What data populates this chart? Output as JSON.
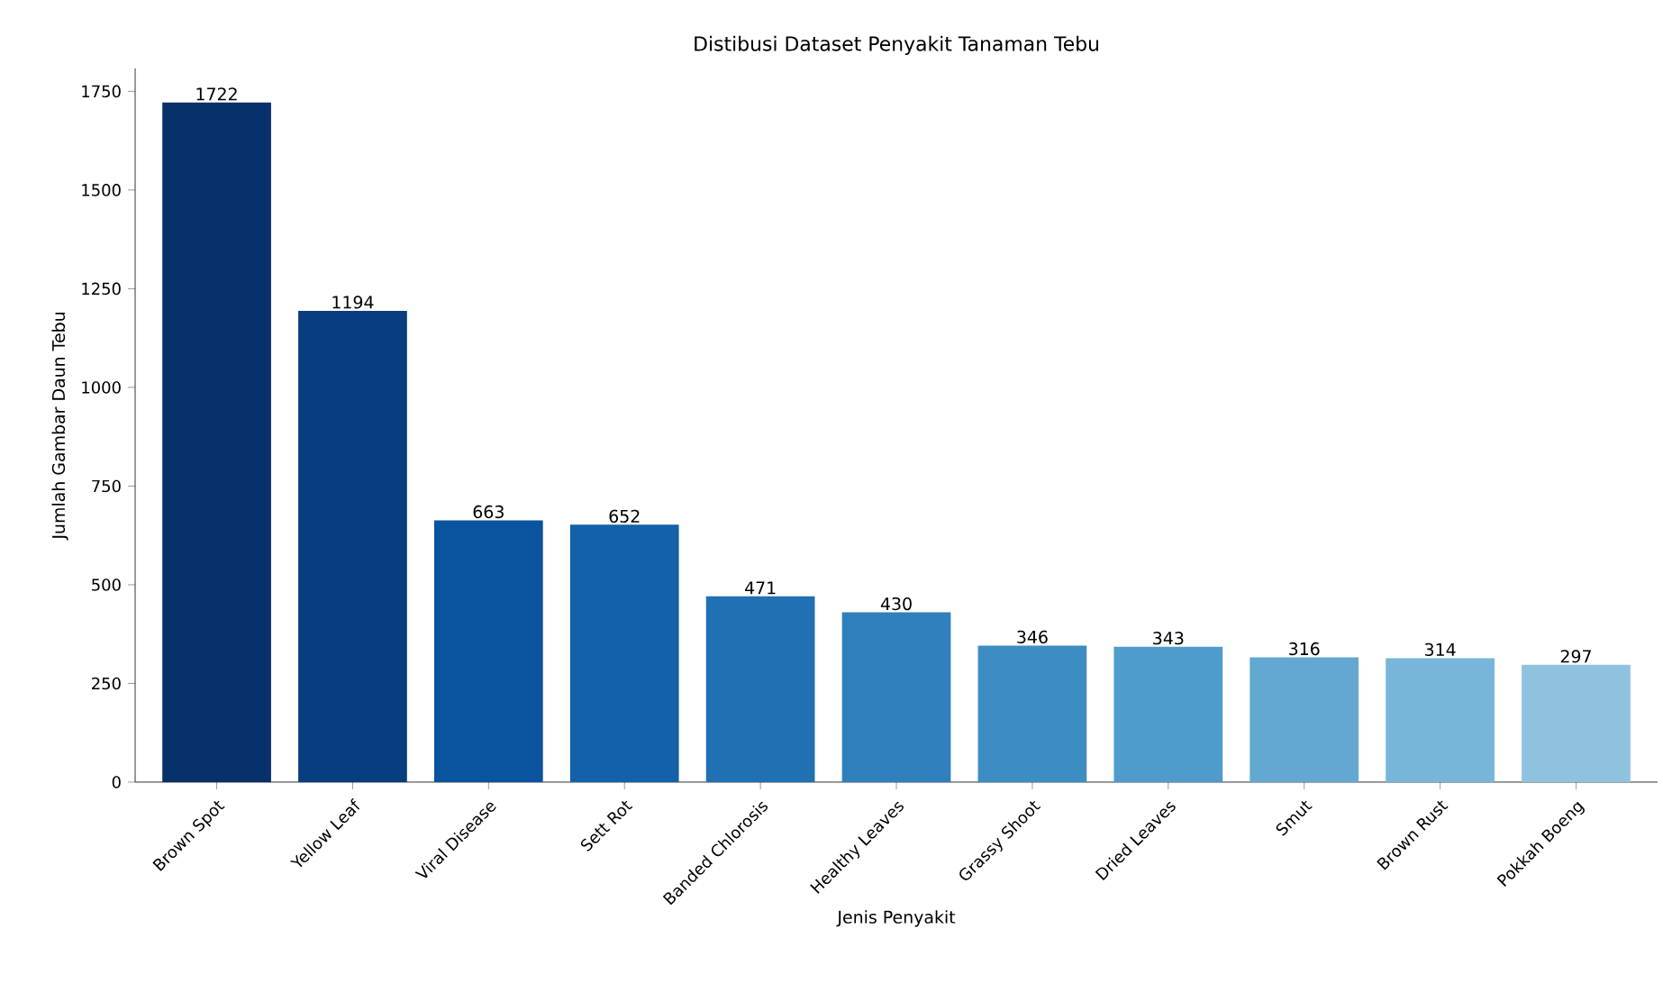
{
  "chart_data": {
    "type": "bar",
    "title": "Distibusi Dataset Penyakit Tanaman Tebu",
    "xlabel": "Jenis Penyakit",
    "ylabel": "Jumlah Gambar Daun Tebu",
    "categories": [
      "Brown Spot",
      "Yellow Leaf",
      "Viral Disease",
      "Sett Rot",
      "Banded Chlorosis",
      "Healthy Leaves",
      "Grassy Shoot",
      "Dried Leaves",
      "Smut",
      "Brown Rust",
      "Pokkah Boeng"
    ],
    "values": [
      1722,
      1194,
      663,
      652,
      471,
      430,
      346,
      343,
      316,
      314,
      297
    ],
    "colors": [
      "#08306b",
      "#083d7f",
      "#0a539e",
      "#1361a9",
      "#2070b4",
      "#2f7fbc",
      "#3d8dc4",
      "#4f9bcb",
      "#62a8d2",
      "#77b5d9",
      "#8fc2de"
    ],
    "ylim": [
      0,
      1808
    ],
    "yticks": [
      0,
      250,
      500,
      750,
      1000,
      1250,
      1500,
      1750
    ],
    "data_labels": true
  }
}
